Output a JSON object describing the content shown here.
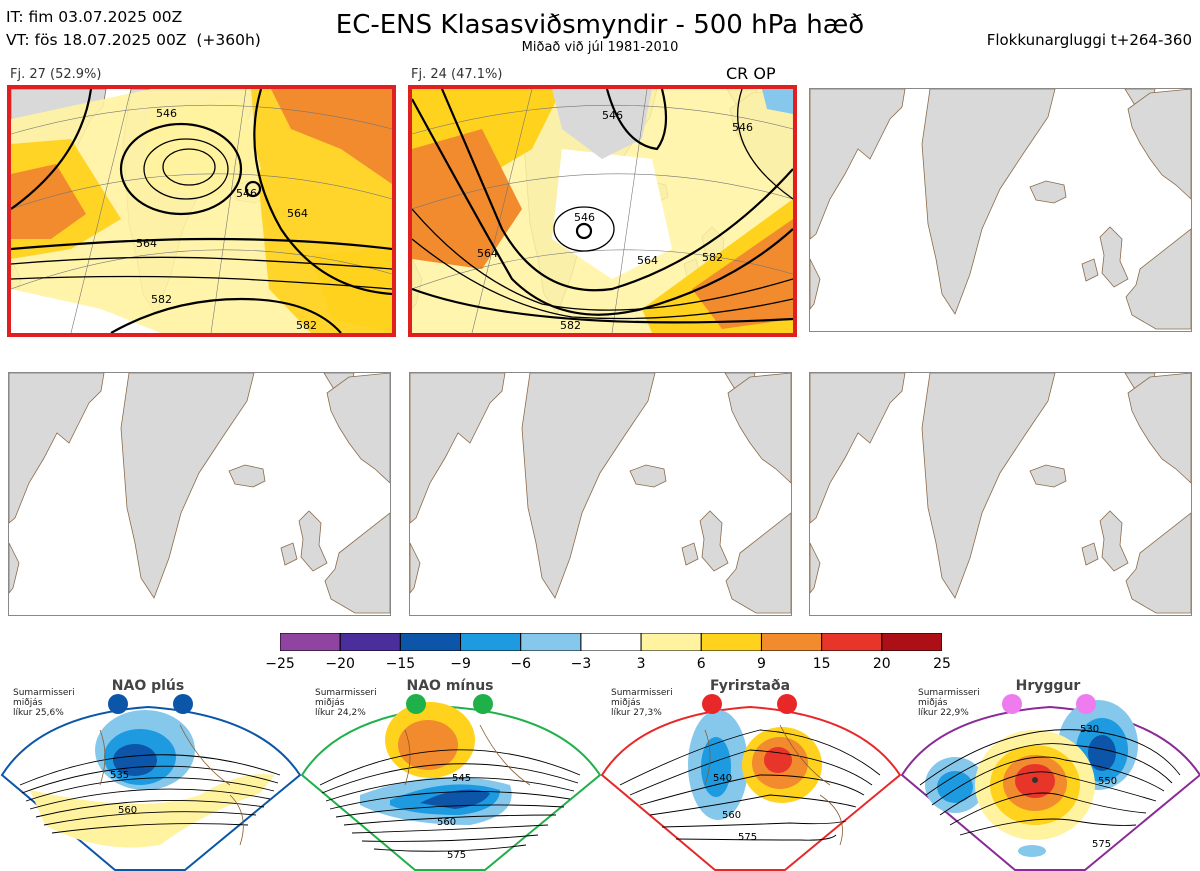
{
  "header": {
    "it_line": "IT: fim 03.07.2025 00Z",
    "vt_line": "VT: fös 18.07.2025 00Z  (+360h)",
    "title": "EC-ENS Klasasviðsmyndir - 500 hPa hæð",
    "subtitle": "Miðað við júl 1981-2010",
    "window": "Flokkunargluggi t+264-360"
  },
  "panels": [
    {
      "label": "Fj. 27 (52.9%)",
      "selected": true,
      "contours": [
        "546",
        "564",
        "582",
        "582",
        "564",
        "546"
      ]
    },
    {
      "label": "Fj. 24 (47.1%)",
      "selected": true,
      "extra": "CR OP",
      "contours": [
        "546",
        "564",
        "582",
        "582",
        "564",
        "546",
        "546"
      ]
    },
    {
      "label": "",
      "selected": false
    },
    {
      "label": "",
      "selected": false
    },
    {
      "label": "",
      "selected": false
    },
    {
      "label": "",
      "selected": false
    }
  ],
  "colorbar": {
    "ticks": [
      "−25",
      "−20",
      "−15",
      "−9",
      "−6",
      "−3",
      "3",
      "6",
      "9",
      "15",
      "20",
      "25"
    ],
    "colors": [
      "#8e44a0",
      "#4a2f9c",
      "#0c55a8",
      "#1e9be0",
      "#86c8ec",
      "#ffffff",
      "#fff3a0",
      "#ffd21e",
      "#f28a2e",
      "#e8352a",
      "#ad0f16"
    ]
  },
  "regimes": [
    {
      "name": "NAO plús",
      "info": [
        "Sumarmisseri",
        "miðjás",
        "líkur 25,6%"
      ],
      "dot_color": "#0b56a8",
      "border": "#0b56a8",
      "contours": [
        "535",
        "560"
      ]
    },
    {
      "name": "NAO mínus",
      "info": [
        "Sumarmisseri",
        "miðjás",
        "líkur 24,2%"
      ],
      "dot_color": "#20b04a",
      "border": "#20b04a",
      "contours": [
        "545",
        "560",
        "575"
      ]
    },
    {
      "name": "Fyrirstaða",
      "info": [
        "Sumarmisseri",
        "miðjás",
        "líkur 27,3%"
      ],
      "dot_color": "#e82828",
      "border": "#e82828",
      "contours": [
        "540",
        "560",
        "575"
      ]
    },
    {
      "name": "Hryggur",
      "info": [
        "Sumarmisseri",
        "miðjás",
        "líkur 22,9%"
      ],
      "dot_color": "#ee7cee",
      "border": "#8a2a96",
      "contours": [
        "530",
        "550",
        "575"
      ]
    }
  ]
}
